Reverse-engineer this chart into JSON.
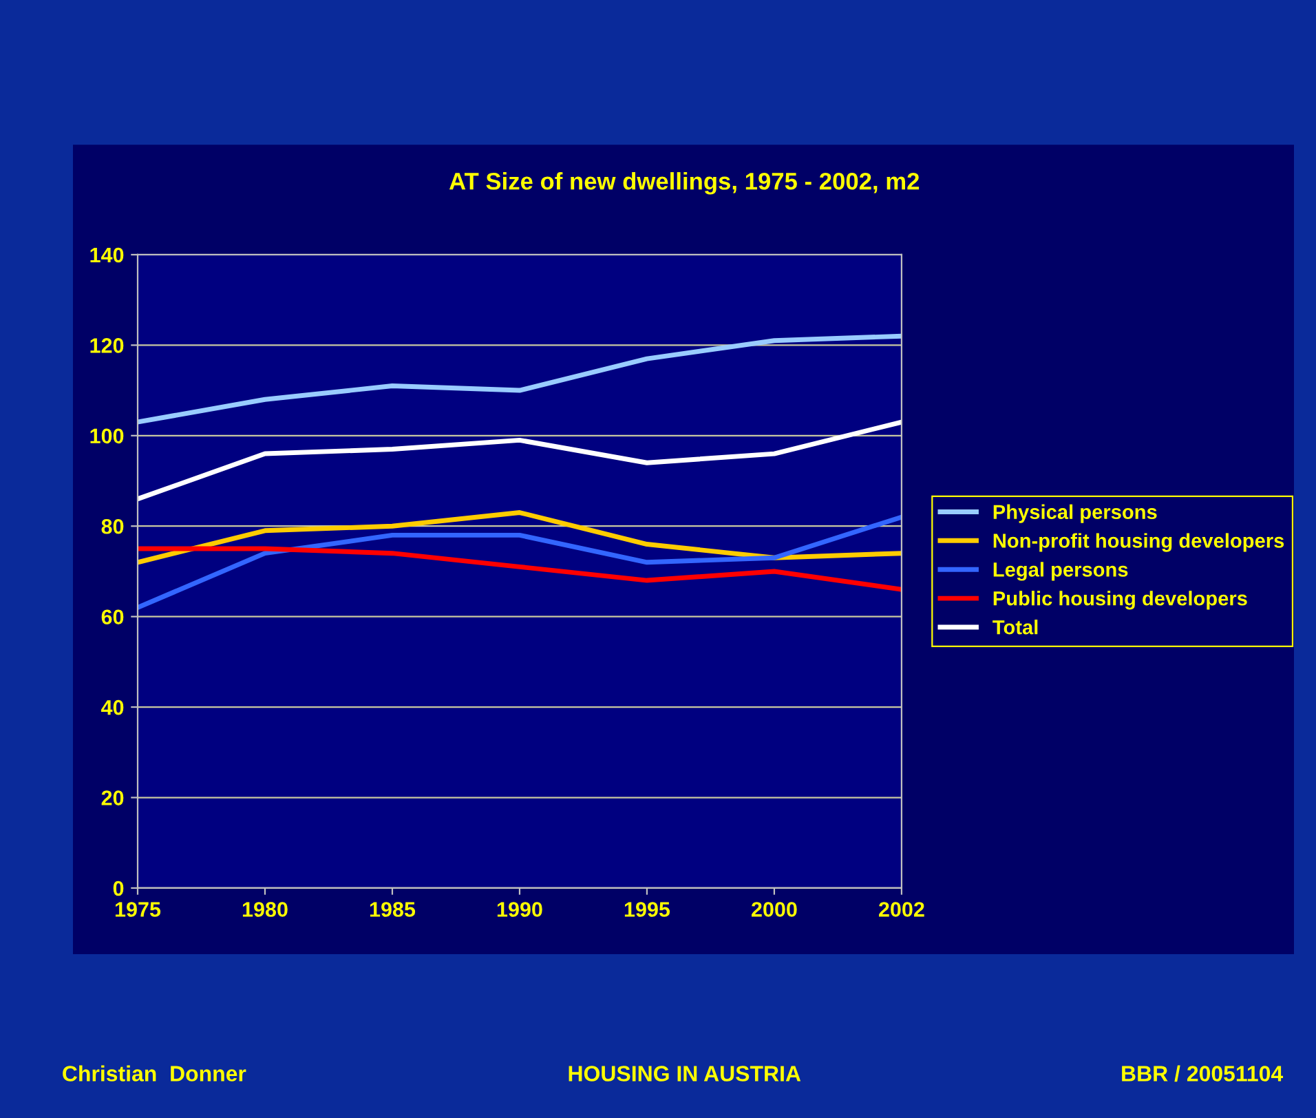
{
  "chart_data": {
    "type": "line",
    "title": "AT Size of new dwellings, 1975 - 2002, m2",
    "categories": [
      "1975",
      "1980",
      "1985",
      "1990",
      "1995",
      "2000",
      "2002"
    ],
    "series": [
      {
        "name": "Physical persons",
        "color": "#99ccff",
        "values": [
          103,
          108,
          111,
          110,
          117,
          121,
          122
        ]
      },
      {
        "name": "Non-profit housing developers",
        "color": "#ffcc00",
        "values": [
          72,
          79,
          80,
          83,
          76,
          73,
          74
        ]
      },
      {
        "name": "Legal persons",
        "color": "#3366ff",
        "values": [
          62,
          74,
          78,
          78,
          72,
          73,
          82
        ]
      },
      {
        "name": "Public housing developers",
        "color": "#ff0000",
        "values": [
          75,
          75,
          74,
          71,
          68,
          70,
          66
        ]
      },
      {
        "name": "Total",
        "color": "#ffffff",
        "values": [
          86,
          96,
          97,
          99,
          94,
          96,
          103
        ]
      }
    ],
    "ylim": [
      0,
      140
    ],
    "yticks": [
      0,
      20,
      40,
      60,
      80,
      100,
      120,
      140
    ],
    "grid": "y",
    "legend": "right",
    "marker": "none",
    "line_style": "solid",
    "annotations": [
      "Christian  Donner",
      "HOUSING IN AUSTRIA",
      "BBR / 20051104"
    ]
  }
}
